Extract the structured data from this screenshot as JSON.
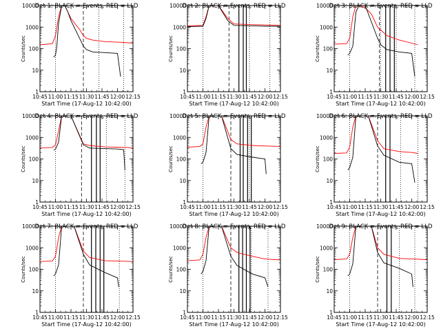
{
  "chart_data": {
    "type": "line",
    "layout": "3x3 grid of panels",
    "yscale": "log",
    "ylim": [
      1,
      10000
    ],
    "xlim": [
      "10:45",
      "12:15"
    ],
    "xlabel": "Start Time (17-Aug-12 10:42:00)",
    "ylabel": "Counts/sec",
    "x_ticks": [
      "10:45",
      "11:00",
      "11:15",
      "11:30",
      "11:45",
      "12:00",
      "12:15"
    ],
    "y_ticks": [
      "1",
      "10",
      "100",
      "1000",
      "10000"
    ],
    "series_colors": {
      "events": "#000000",
      "lld": "#ff0000"
    },
    "panels": [
      {
        "title": "Det 1: BLACK = Events, RED = LLD",
        "events": {
          "x": [
            10.97,
            11.0,
            11.02,
            11.05,
            11.1,
            11.15,
            11.2,
            11.25,
            11.45,
            11.5,
            11.6,
            11.8,
            12.0,
            12.05
          ],
          "y": [
            40,
            50,
            110,
            1500,
            12000,
            12000,
            5000,
            2000,
            130,
            90,
            70,
            65,
            60,
            5
          ]
        },
        "lld": {
          "x": [
            10.75,
            10.95,
            11.0,
            11.05,
            11.1,
            11.15,
            11.2,
            11.25,
            11.4,
            11.45,
            11.5,
            11.6,
            11.8,
            12.0,
            12.25
          ],
          "y": [
            150,
            170,
            400,
            3000,
            12000,
            12000,
            5000,
            2500,
            700,
            400,
            300,
            250,
            210,
            200,
            180
          ]
        },
        "dotted_x": [
          11.0,
          11.7,
          12.1
        ],
        "dashed_x": [
          11.45
        ],
        "solid_x": []
      },
      {
        "title": "Det 2: BLACK = Events, RED = LLD",
        "events": {
          "x": [
            10.75,
            11.0,
            11.05,
            11.1,
            11.15,
            11.25,
            11.4,
            11.5,
            11.8,
            12.0,
            12.25
          ],
          "y": [
            1050,
            1100,
            2500,
            12000,
            12000,
            12000,
            2000,
            1200,
            1150,
            1100,
            1100
          ]
        },
        "lld": {
          "x": [
            10.75,
            11.0,
            11.05,
            11.1,
            11.15,
            11.25,
            11.4,
            11.5,
            11.8,
            12.0,
            12.25
          ],
          "y": [
            1150,
            1200,
            3000,
            12000,
            12000,
            12000,
            2500,
            1400,
            1300,
            1250,
            1200
          ]
        },
        "dotted_x": [
          11.0,
          11.75,
          12.08
        ],
        "dashed_x": [
          11.42
        ],
        "solid_x": [
          11.58,
          11.65,
          11.7
        ]
      },
      {
        "title": "Det 3: BLACK = Events, RED = LLD",
        "events": {
          "x": [
            10.97,
            11.0,
            11.05,
            11.1,
            11.15,
            11.25,
            11.45,
            11.5,
            11.6,
            11.8,
            12.0,
            12.05
          ],
          "y": [
            50,
            60,
            130,
            5000,
            12000,
            12000,
            300,
            150,
            90,
            70,
            60,
            5
          ]
        },
        "lld": {
          "x": [
            10.75,
            10.95,
            11.0,
            11.05,
            11.1,
            11.15,
            11.25,
            11.35,
            11.45,
            11.6,
            11.8,
            12.0,
            12.1
          ],
          "y": [
            160,
            170,
            300,
            3000,
            12000,
            12000,
            8000,
            4000,
            1000,
            400,
            250,
            180,
            150
          ]
        },
        "dotted_x": [
          11.0,
          11.5,
          11.75,
          12.05
        ],
        "dashed_x": [
          11.48
        ],
        "solid_x": [
          11.58,
          11.65,
          11.72
        ]
      },
      {
        "title": "Det 4: BLACK = Events, RED = LLD",
        "events": {
          "x": [
            10.97,
            11.0,
            11.05,
            11.1,
            11.15,
            11.25,
            11.45,
            11.55,
            11.8,
            12.0,
            12.1,
            12.12
          ],
          "y": [
            260,
            280,
            600,
            12000,
            12000,
            12000,
            450,
            320,
            300,
            290,
            270,
            30
          ]
        },
        "lld": {
          "x": [
            10.75,
            10.95,
            11.0,
            11.05,
            11.1,
            11.15,
            11.25,
            11.45,
            11.55,
            11.8,
            12.0,
            12.25
          ],
          "y": [
            330,
            340,
            450,
            2000,
            12000,
            12000,
            12000,
            500,
            420,
            360,
            350,
            330
          ]
        },
        "dotted_x": [
          11.0,
          11.82,
          12.12
        ],
        "dashed_x": [
          11.42
        ],
        "solid_x": [
          11.58,
          11.66,
          11.72
        ]
      },
      {
        "title": "Det 5: BLACK = Events, RED = LLD",
        "events": {
          "x": [
            10.97,
            11.0,
            11.05,
            11.1,
            11.15,
            11.3,
            11.45,
            11.55,
            11.8,
            12.0,
            12.02
          ],
          "y": [
            60,
            70,
            200,
            12000,
            12000,
            12000,
            300,
            160,
            120,
            100,
            20
          ]
        },
        "lld": {
          "x": [
            10.75,
            10.95,
            11.0,
            11.05,
            11.1,
            11.15,
            11.3,
            11.45,
            11.55,
            11.8,
            12.0,
            12.25
          ],
          "y": [
            350,
            380,
            500,
            3000,
            12000,
            12000,
            12000,
            800,
            500,
            420,
            400,
            380
          ]
        },
        "dotted_x": [
          11.0,
          11.75
        ],
        "dashed_x": [
          11.45
        ],
        "solid_x": [
          11.6,
          11.65,
          11.72,
          11.78
        ]
      },
      {
        "title": "Det 6: BLACK = Events, RED = LLD",
        "events": {
          "x": [
            10.97,
            11.0,
            11.05,
            11.1,
            11.15,
            11.3,
            11.45,
            11.55,
            11.8,
            12.0,
            12.05
          ],
          "y": [
            30,
            40,
            120,
            12000,
            12000,
            12000,
            400,
            150,
            70,
            60,
            8
          ]
        },
        "lld": {
          "x": [
            10.75,
            10.95,
            11.0,
            11.05,
            11.1,
            11.15,
            11.3,
            11.45,
            11.55,
            11.8,
            12.0,
            12.1
          ],
          "y": [
            180,
            190,
            350,
            3000,
            12000,
            12000,
            10000,
            700,
            300,
            220,
            200,
            180
          ]
        },
        "dotted_x": [
          11.0,
          11.82,
          12.1
        ],
        "dashed_x": [
          11.45
        ],
        "solid_x": [
          11.58,
          11.65
        ]
      },
      {
        "title": "Det 7: BLACK = Events, RED = LLD",
        "events": {
          "x": [
            10.97,
            11.0,
            11.05,
            11.1,
            11.15,
            11.3,
            11.45,
            11.55,
            11.8,
            12.0,
            12.02
          ],
          "y": [
            50,
            60,
            160,
            12000,
            12000,
            12000,
            500,
            160,
            70,
            40,
            15
          ]
        },
        "lld": {
          "x": [
            10.75,
            10.95,
            11.0,
            11.05,
            11.1,
            11.15,
            11.3,
            11.45,
            11.55,
            11.8,
            12.0,
            12.25
          ],
          "y": [
            230,
            240,
            400,
            3000,
            12000,
            12000,
            12000,
            700,
            350,
            250,
            240,
            230
          ]
        },
        "dotted_x": [
          11.0,
          11.78,
          12.03
        ],
        "dashed_x": [
          11.45
        ],
        "solid_x": [
          11.58,
          11.65,
          11.72,
          11.78
        ]
      },
      {
        "title": "Det 8: BLACK = Events, RED = LLD",
        "events": {
          "x": [
            10.97,
            11.0,
            11.05,
            11.1,
            11.15,
            11.3,
            11.45,
            11.55,
            11.8,
            12.0,
            12.05
          ],
          "y": [
            60,
            80,
            250,
            12000,
            12000,
            12000,
            400,
            150,
            60,
            40,
            15
          ]
        },
        "lld": {
          "x": [
            10.75,
            10.95,
            11.0,
            11.05,
            11.1,
            11.15,
            11.3,
            11.45,
            11.55,
            11.8,
            12.0,
            12.25
          ],
          "y": [
            250,
            270,
            500,
            3000,
            12000,
            12000,
            12000,
            1000,
            600,
            400,
            300,
            270
          ]
        },
        "dotted_x": [
          11.0,
          11.78,
          12.05
        ],
        "dashed_x": [
          11.45
        ],
        "solid_x": [
          11.58,
          11.64,
          11.7,
          11.76
        ]
      },
      {
        "title": "Det 9: BLACK = Events, RED = LLD",
        "events": {
          "x": [
            10.97,
            11.0,
            11.05,
            11.1,
            11.15,
            11.35,
            11.45,
            11.55,
            11.8,
            12.0,
            12.02
          ],
          "y": [
            50,
            60,
            180,
            12000,
            12000,
            12000,
            600,
            200,
            110,
            60,
            15
          ]
        },
        "lld": {
          "x": [
            10.75,
            10.95,
            11.0,
            11.05,
            11.1,
            11.15,
            11.35,
            11.45,
            11.55,
            11.8,
            12.0,
            12.25
          ],
          "y": [
            280,
            300,
            500,
            3000,
            12000,
            12000,
            12000,
            1000,
            500,
            320,
            300,
            280
          ]
        },
        "dotted_x": [
          11.0,
          11.8,
          12.05
        ],
        "dashed_x": [
          11.45
        ],
        "solid_x": [
          11.6,
          11.67
        ]
      }
    ]
  }
}
